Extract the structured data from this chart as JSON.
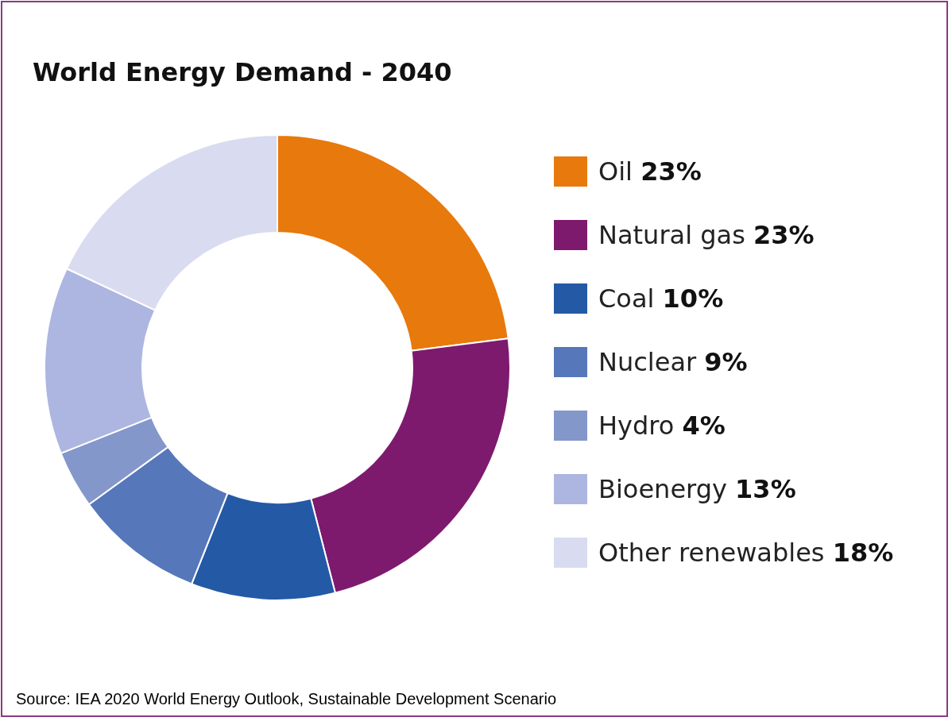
{
  "chart_data": {
    "type": "donut",
    "title": "World Energy Demand - 2040",
    "categories": [
      "Oil",
      "Natural gas",
      "Coal",
      "Nuclear",
      "Hydro",
      "Bioenergy",
      "Other renewables"
    ],
    "values": [
      23,
      23,
      10,
      9,
      4,
      13,
      18
    ],
    "value_labels": [
      "23%",
      "23%",
      "10%",
      "9%",
      "4%",
      "13%",
      "18%"
    ],
    "colors": [
      "#e8790c",
      "#7e1a6e",
      "#2459a6",
      "#5677b9",
      "#8497cb",
      "#adb6e0",
      "#d9dbf0"
    ],
    "legend": "right",
    "annotations": [
      "Source: IEA 2020 World Energy Outlook, Sustainable Development Scenario"
    ]
  }
}
